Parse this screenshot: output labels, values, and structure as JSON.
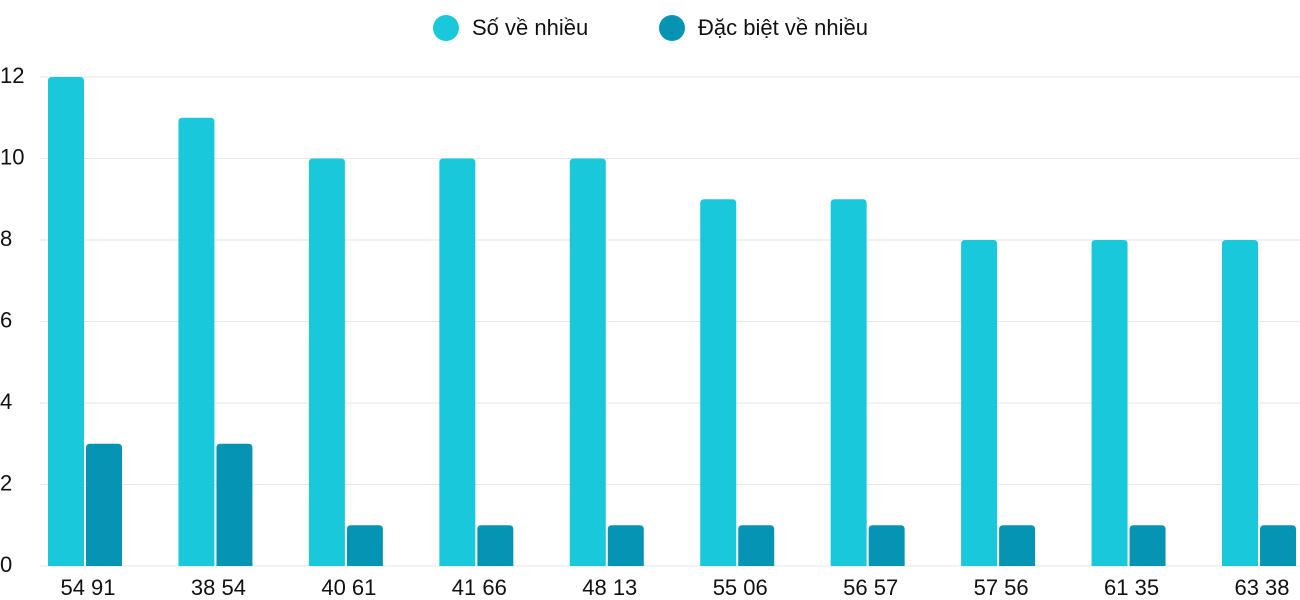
{
  "chart_data": {
    "type": "bar",
    "categories": [
      "54 91",
      "38 54",
      "40 61",
      "41 66",
      "48 13",
      "55 06",
      "56 57",
      "57 56",
      "61 35",
      "63 38"
    ],
    "series": [
      {
        "name": "Số về nhiều",
        "color": "#1ac8db",
        "values": [
          12,
          11,
          10,
          10,
          10,
          9,
          9,
          8,
          8,
          8
        ]
      },
      {
        "name": "Đặc biệt về nhiều",
        "color": "#0694b5",
        "values": [
          3,
          3,
          1,
          1,
          1,
          1,
          1,
          1,
          1,
          1
        ]
      }
    ],
    "ylim": [
      0,
      12
    ],
    "yticks": [
      0,
      2,
      4,
      6,
      8,
      10,
      12
    ],
    "grid": true,
    "legend": "top"
  }
}
